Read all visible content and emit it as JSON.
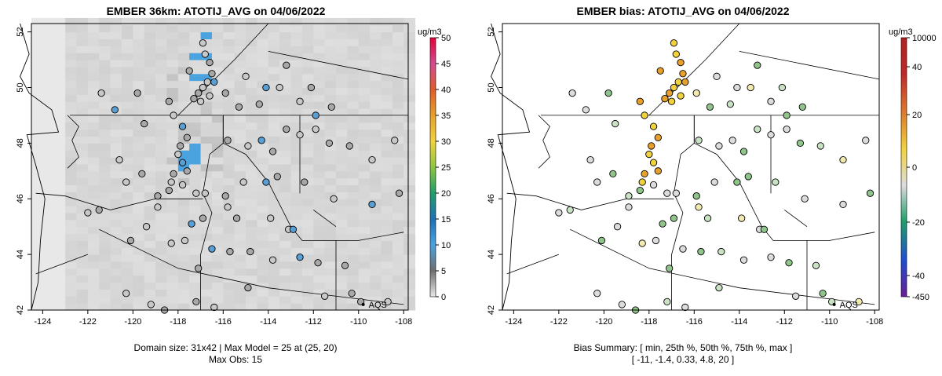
{
  "left_panel": {
    "title": "EMBER 36km: ATOTIJ_AVG on 04/06/2022",
    "footer_line1": "Domain size: 31x42 | Max Model = 25 at (25, 20)",
    "footer_line2": "Max Obs: 15",
    "colorbar_unit": "ug/m3",
    "colorbar_ticks": [
      "0",
      "5",
      "10",
      "15",
      "20",
      "25",
      "30",
      "35",
      "40",
      "45",
      "50"
    ],
    "legend_label": "AQS"
  },
  "right_panel": {
    "title": "EMBER bias: ATOTIJ_AVG on 04/06/2022",
    "footer_line1": "Bias Summary: [ min, 25th %, 50th %, 75th %, max ]",
    "footer_line2": "[ -11,  -1.4,  0.33,  4.8,  20 ]",
    "colorbar_unit": "ug/m3",
    "colorbar_ticks": [
      "10000",
      "40",
      "20",
      "0",
      "-20",
      "-40",
      "-450"
    ],
    "legend_label": "AQS"
  },
  "axes": {
    "x_ticks": [
      "-124",
      "-122",
      "-120",
      "-118",
      "-116",
      "-114",
      "-112",
      "-110",
      "-108"
    ],
    "y_ticks": [
      "42",
      "44",
      "46",
      "48",
      "50",
      "52"
    ],
    "xlim": [
      -124.5,
      -107.8
    ],
    "ylim": [
      42,
      52.3
    ]
  },
  "colors": {
    "background_gray": "#dcdcdc",
    "highlight_blue": "#4aa3df",
    "highlight_green": "#1f9e6a",
    "bias_yellow": "#f2d23c",
    "bias_orange": "#e7a02c",
    "bias_green": "#8fc48a"
  }
}
